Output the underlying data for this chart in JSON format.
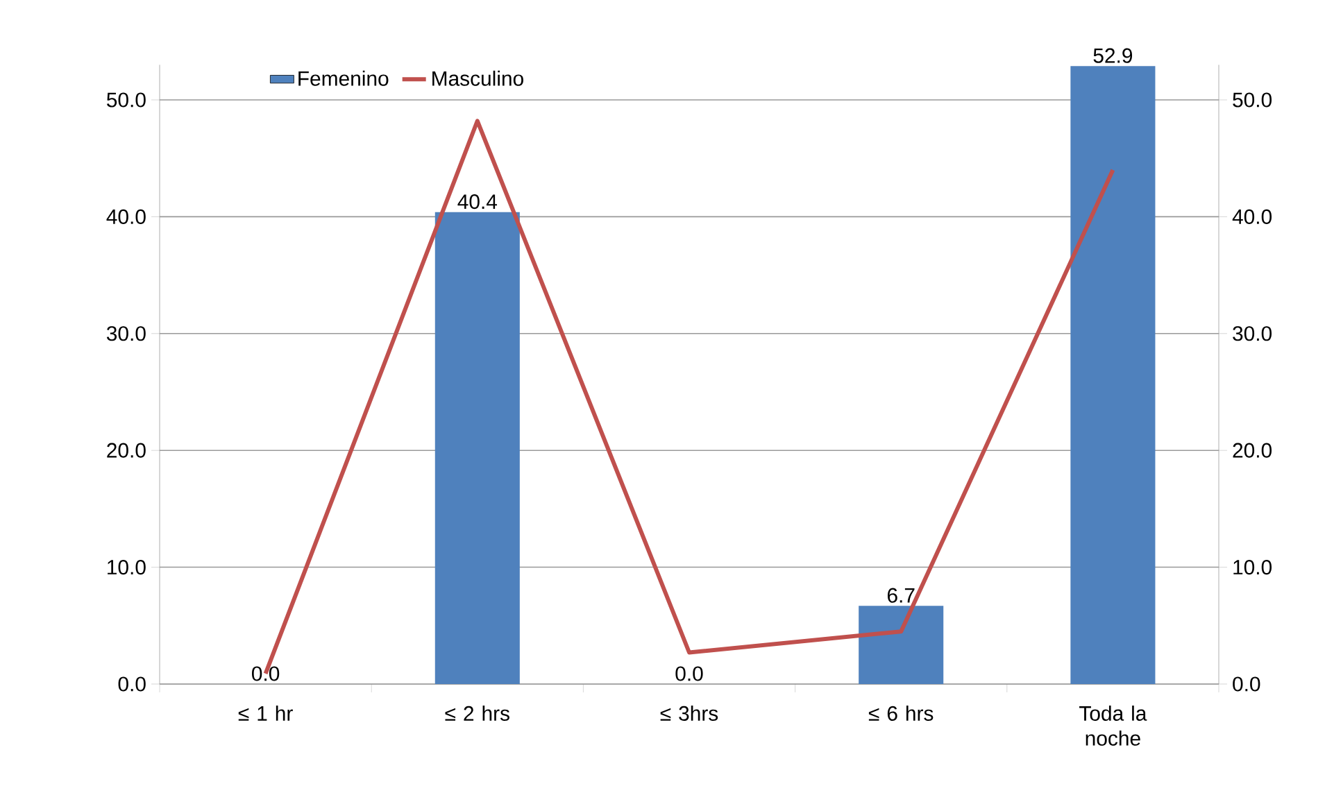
{
  "chart_data": {
    "type": "bar",
    "categories": [
      "≤ 1 hr",
      "≤ 2 hrs",
      "≤ 3hrs",
      "≤ 6 hrs",
      "Toda la noche"
    ],
    "series": [
      {
        "name": "Femenino",
        "color": "#4f81bd",
        "values": [
          0.0,
          40.4,
          0.0,
          6.7,
          52.9
        ],
        "value_labels": [
          "0.0",
          "40.4",
          "0.0",
          "6.7",
          "52.9"
        ]
      },
      {
        "name": "Masculino",
        "type": "line",
        "axis": "y2",
        "color": "#c0504d",
        "values": [
          0.9,
          48.2,
          2.7,
          4.5,
          44.0
        ]
      }
    ],
    "ylim": [
      0,
      53
    ],
    "yticks": [
      {
        "value": 0,
        "label": "0.0"
      },
      {
        "value": 10,
        "label": "10.0"
      },
      {
        "value": 20,
        "label": "20.0"
      },
      {
        "value": 30,
        "label": "30.0"
      },
      {
        "value": 40,
        "label": "40.0"
      },
      {
        "value": 50,
        "label": "50.0"
      }
    ],
    "y2lim": [
      0,
      53
    ],
    "y2ticks": [
      {
        "value": 0,
        "label": "0.0"
      },
      {
        "value": 10,
        "label": "10.0"
      },
      {
        "value": 20,
        "label": "20.0"
      },
      {
        "value": 30,
        "label": "30.0"
      },
      {
        "value": 40,
        "label": "40.0"
      },
      {
        "value": 50,
        "label": "50.0"
      }
    ],
    "grid": "y",
    "legend": "top",
    "marker": "none",
    "line_style": "solid"
  }
}
